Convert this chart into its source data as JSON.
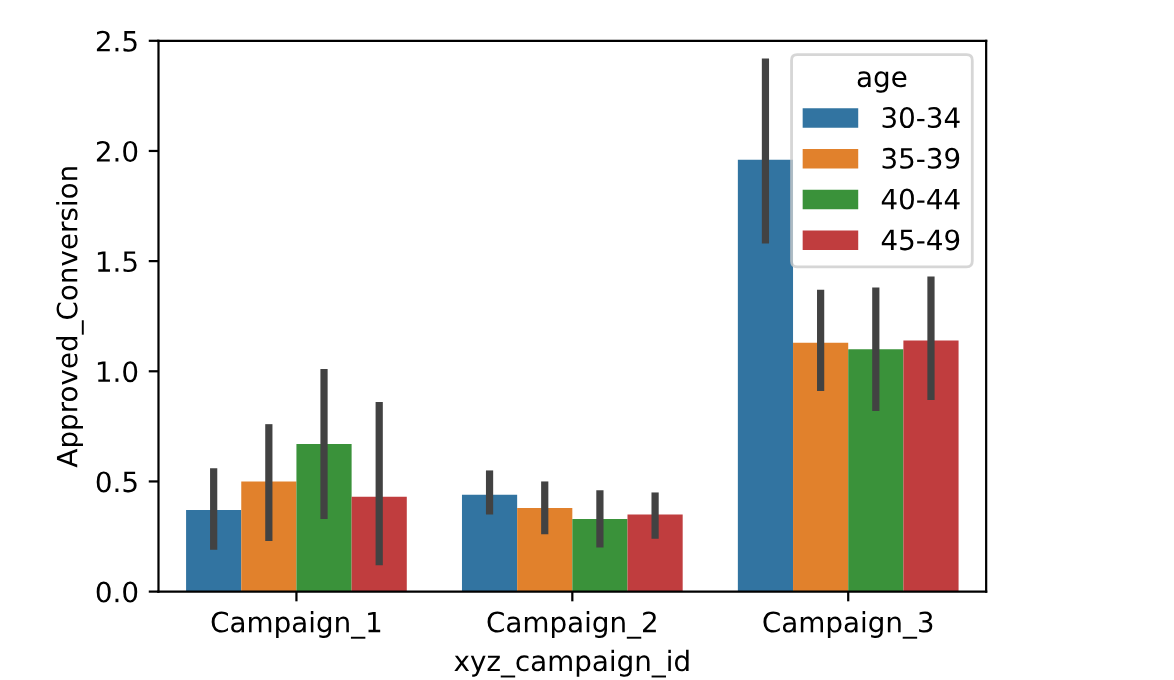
{
  "chart_data": {
    "type": "bar",
    "xlabel": "xyz_campaign_id",
    "ylabel": "Approved_Conversion",
    "legend_title": "age",
    "legend": "top right",
    "grid": false,
    "categories": [
      "Campaign_1",
      "Campaign_2",
      "Campaign_3"
    ],
    "ylim": [
      0,
      2.5
    ],
    "yticks": [
      {
        "value": 0,
        "label": "0.0"
      },
      {
        "value": 0.5,
        "label": "0.5"
      },
      {
        "value": 1,
        "label": "1.0"
      },
      {
        "value": 1.5,
        "label": "1.5"
      },
      {
        "value": 2,
        "label": "2.0"
      },
      {
        "value": 2.5,
        "label": "2.5"
      }
    ],
    "series": [
      {
        "name": "30-34",
        "color": "#3274a1",
        "values": [
          0.37,
          0.44,
          1.96
        ],
        "errors": [
          [
            0.19,
            0.56
          ],
          [
            0.35,
            0.55
          ],
          [
            1.58,
            2.42
          ]
        ]
      },
      {
        "name": "35-39",
        "color": "#e1812c",
        "values": [
          0.5,
          0.38,
          1.13
        ],
        "errors": [
          [
            0.23,
            0.76
          ],
          [
            0.26,
            0.5
          ],
          [
            0.91,
            1.37
          ]
        ]
      },
      {
        "name": "40-44",
        "color": "#3a923a",
        "values": [
          0.67,
          0.33,
          1.1
        ],
        "errors": [
          [
            0.33,
            1.01
          ],
          [
            0.2,
            0.46
          ],
          [
            0.82,
            1.38
          ]
        ]
      },
      {
        "name": "45-49",
        "color": "#c03d3e",
        "values": [
          0.43,
          0.35,
          1.14
        ],
        "errors": [
          [
            0.12,
            0.86
          ],
          [
            0.24,
            0.45
          ],
          [
            0.87,
            1.43
          ]
        ]
      }
    ]
  }
}
